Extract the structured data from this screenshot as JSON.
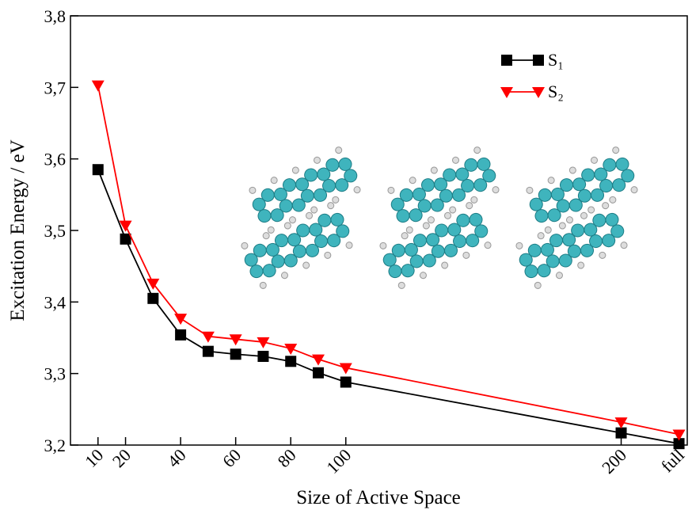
{
  "chart_data": {
    "type": "line",
    "x_label": "Size of Active Space",
    "y_label": "Excitation Energy / eV",
    "x": [
      10,
      20,
      30,
      40,
      50,
      60,
      70,
      80,
      90,
      100,
      200,
      221
    ],
    "series": [
      {
        "name": "S₁",
        "color": "#000000",
        "marker": "square",
        "values": [
          3.585,
          3.488,
          3.405,
          3.354,
          3.331,
          3.327,
          3.324,
          3.317,
          3.301,
          3.288,
          3.217,
          3.202
        ]
      },
      {
        "name": "S₂",
        "color": "#ff0000",
        "marker": "triangle-down",
        "values": [
          3.703,
          3.507,
          3.426,
          3.377,
          3.352,
          3.348,
          3.344,
          3.335,
          3.32,
          3.308,
          3.232,
          3.215
        ]
      }
    ],
    "xlim": [
      0,
      224
    ],
    "xticks": [
      10,
      20,
      40,
      60,
      80,
      100,
      200,
      {
        "value": 221,
        "label": "full"
      }
    ],
    "ylim": [
      3.2,
      3.8
    ],
    "yticks": [
      {
        "value": 3.2,
        "label": "3,2"
      },
      {
        "value": 3.3,
        "label": "3,3"
      },
      {
        "value": 3.4,
        "label": "3,4"
      },
      {
        "value": 3.5,
        "label": "3,5"
      },
      {
        "value": 3.6,
        "label": "3,6"
      },
      {
        "value": 3.7,
        "label": "3,7"
      },
      {
        "value": 3.8,
        "label": "3,8"
      }
    ],
    "legend": "upper right"
  }
}
